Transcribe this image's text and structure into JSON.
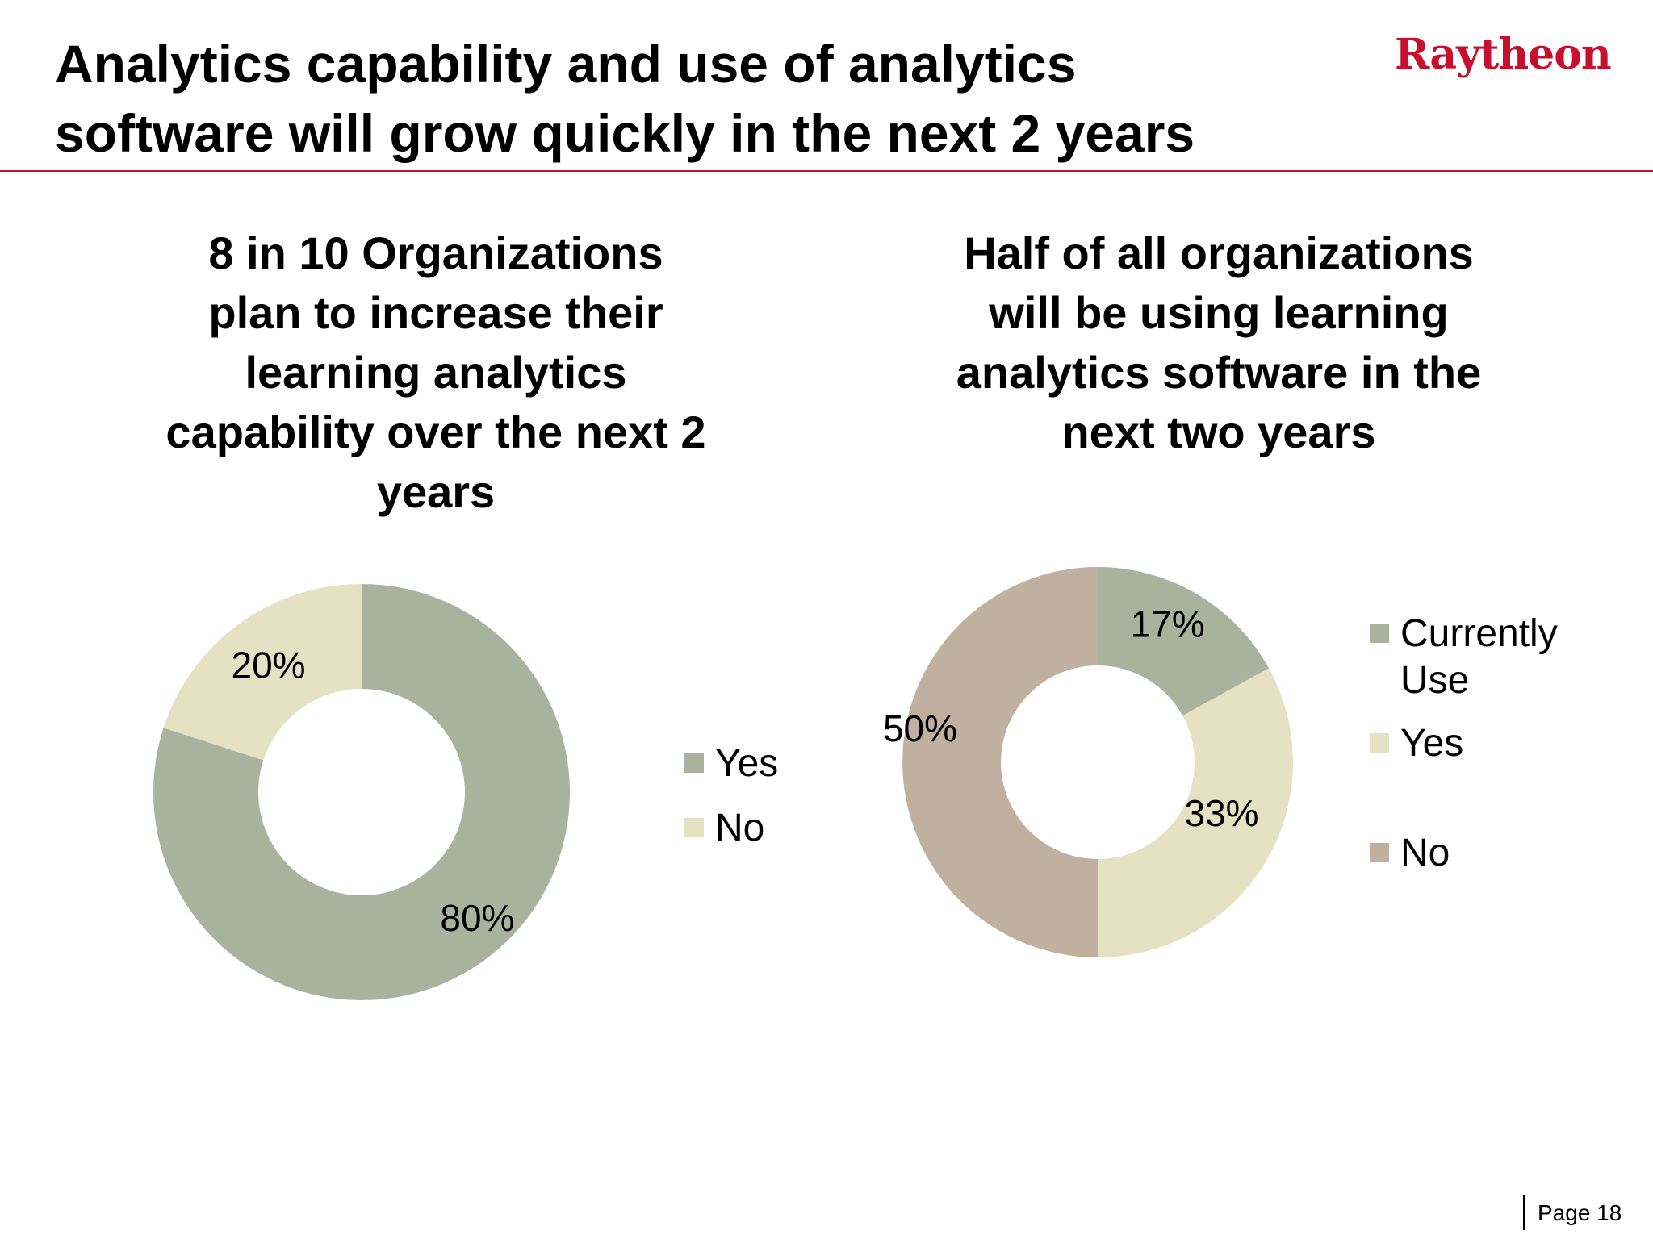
{
  "slide": {
    "title_lines": [
      "Analytics capability and use of analytics",
      "software will grow quickly in the next 2 years"
    ],
    "logo_text": "Raytheon",
    "page_label": "Page 18",
    "accent_color": "#c8102e"
  },
  "chart_data": [
    {
      "type": "pie",
      "variant": "donut",
      "title_lines": [
        "8 in 10 Organizations",
        "plan to increase their",
        "learning analytics",
        "capability over the next 2",
        "years"
      ],
      "categories": [
        "Yes",
        "No"
      ],
      "values": [
        80,
        20
      ],
      "labels": [
        "80%",
        "20%"
      ],
      "colors": [
        "#a8b29d",
        "#e4e2c3"
      ],
      "legend_position": "right"
    },
    {
      "type": "pie",
      "variant": "donut",
      "title_lines": [
        "Half of all organizations",
        "will be using learning",
        "analytics software in the",
        "next two years"
      ],
      "categories": [
        "Currently Use",
        "Yes",
        "No"
      ],
      "legend_lines": [
        [
          "Currently",
          "Use"
        ],
        [
          "Yes"
        ],
        [
          "No"
        ]
      ],
      "values": [
        17,
        33,
        50
      ],
      "labels": [
        "17%",
        "33%",
        "50%"
      ],
      "colors": [
        "#a8b29d",
        "#e4e2c3",
        "#bfb0a0"
      ],
      "legend_position": "right"
    }
  ]
}
